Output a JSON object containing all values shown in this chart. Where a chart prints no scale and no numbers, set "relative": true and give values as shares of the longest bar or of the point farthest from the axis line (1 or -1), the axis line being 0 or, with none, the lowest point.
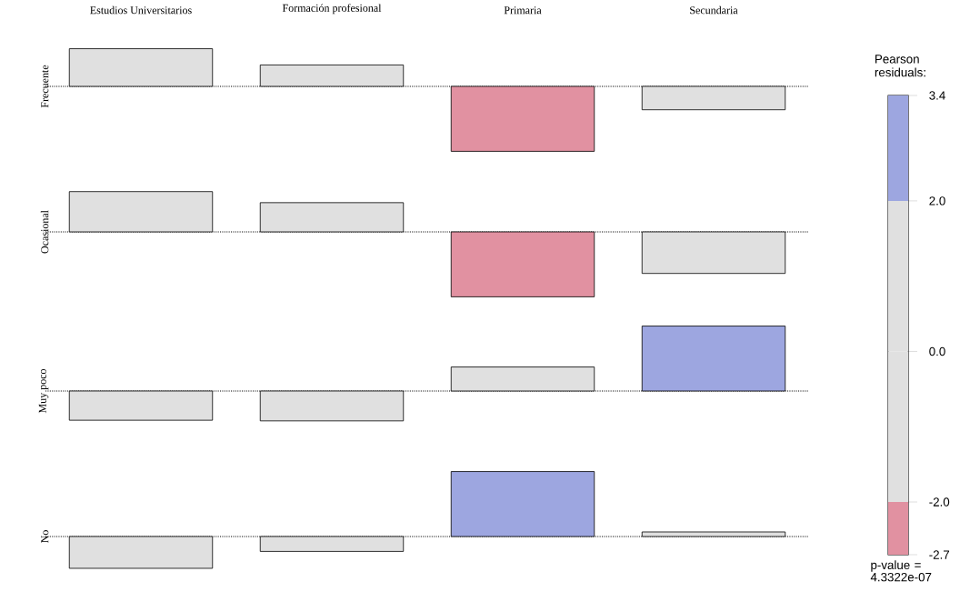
{
  "chart_data": [
    {
      "type": "bar",
      "relative": true,
      "ylabel": "Frecuente",
      "tick_labels": "x",
      "categories": [
        "Estudios Universitarios",
        "Formación profesional",
        "Primaria",
        "Secundaria"
      ],
      "values": [
        0.58,
        0.33,
        -1,
        -0.36
      ],
      "colors": [
        "#e0e0e0",
        "#e0e0e0",
        "#e191a1",
        "#e0e0e0"
      ],
      "ref_lines": [
        {
          "axis": "y",
          "value": 0,
          "line_style": "dotted",
          "color": "#000000"
        }
      ]
    },
    {
      "type": "bar",
      "relative": true,
      "ylabel": "Ocasional",
      "tick_labels": false,
      "categories": [
        null,
        null,
        null,
        null
      ],
      "values": [
        0.62,
        0.45,
        -1,
        -0.64
      ],
      "colors": [
        "#e0e0e0",
        "#e0e0e0",
        "#e191a1",
        "#e0e0e0"
      ],
      "ref_lines": [
        {
          "axis": "y",
          "value": 0,
          "line_style": "dotted",
          "color": "#000000"
        }
      ]
    },
    {
      "type": "bar",
      "relative": true,
      "ylabel": "Muy poco",
      "tick_labels": false,
      "categories": [
        null,
        null,
        null,
        null
      ],
      "values": [
        -0.45,
        -0.46,
        0.37,
        1
      ],
      "colors": [
        "#e0e0e0",
        "#e0e0e0",
        "#e0e0e0",
        "#9da6e0"
      ],
      "ref_lines": [
        {
          "axis": "y",
          "value": 0,
          "line_style": "dotted",
          "color": "#000000"
        }
      ]
    },
    {
      "type": "bar",
      "relative": true,
      "ylabel": "No",
      "tick_labels": false,
      "categories": [
        null,
        null,
        null,
        null
      ],
      "values": [
        -0.49,
        -0.23,
        1,
        0.07
      ],
      "colors": [
        "#e0e0e0",
        "#e0e0e0",
        "#9da6e0",
        "#e0e0e0"
      ],
      "ref_lines": [
        {
          "axis": "y",
          "value": 0,
          "line_style": "dotted",
          "color": "#000000"
        }
      ]
    },
    {
      "type": "bar",
      "stacked": true,
      "title": "Pearson residuals:",
      "categories": [
        null
      ],
      "ylim": [
        -2.7,
        3.4
      ],
      "yticks": [
        {
          "value": -2.7,
          "label": "-2.7"
        },
        {
          "value": -2,
          "label": "-2.0"
        },
        {
          "value": 0,
          "label": "0.0"
        },
        {
          "value": 2,
          "label": "2.0"
        },
        {
          "value": 3.4,
          "label": "3.4"
        }
      ],
      "series": [
        {
          "color": "#e0e0e0",
          "values": [
            -2
          ]
        },
        {
          "color": "#e191a1",
          "values": [
            -0.7
          ]
        },
        {
          "color": "#e0e0e0",
          "values": [
            2
          ]
        },
        {
          "color": "#9da6e0",
          "values": [
            1.4
          ]
        }
      ],
      "annotations": [
        "p-value = 4.3322e-07"
      ]
    }
  ]
}
